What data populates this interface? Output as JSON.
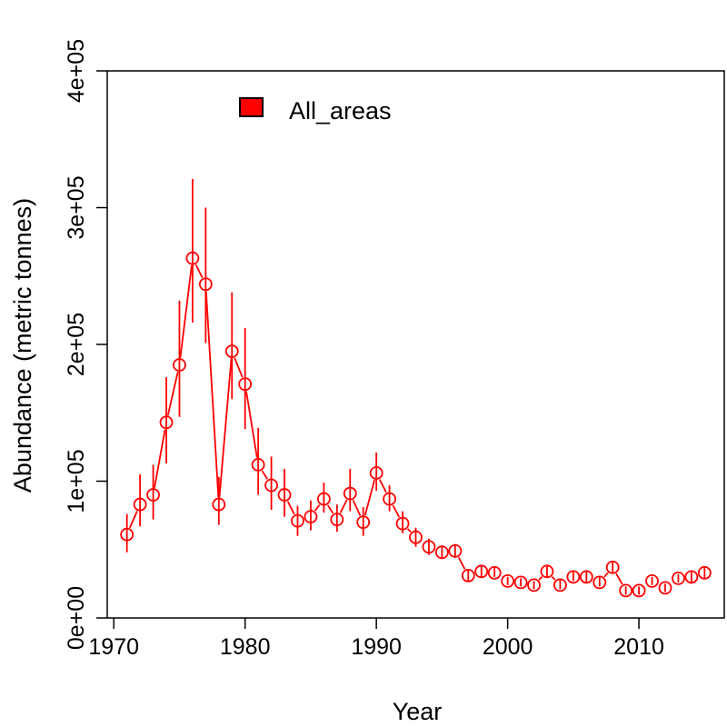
{
  "chart_data": {
    "type": "scatter",
    "xlabel": "Year",
    "ylabel": "Abundance (metric tonnes)",
    "xlim": [
      1969.5,
      2016.5
    ],
    "ylim": [
      0,
      400000
    ],
    "x_ticks": [
      1970,
      1980,
      1990,
      2000,
      2010
    ],
    "x_tick_labels": [
      "1970",
      "1980",
      "1990",
      "2000",
      "2010"
    ],
    "y_ticks": [
      0,
      100000,
      200000,
      300000,
      400000
    ],
    "y_tick_labels": [
      "0e+00",
      "1e+05",
      "2e+05",
      "3e+05",
      "4e+05"
    ],
    "legend": {
      "position": "top-left",
      "label": "All_areas"
    },
    "color": "#ff0000",
    "series": [
      {
        "name": "All_areas",
        "x": [
          1971,
          1972,
          1973,
          1974,
          1975,
          1976,
          1977,
          1978,
          1979,
          1980,
          1981,
          1982,
          1983,
          1984,
          1985,
          1986,
          1987,
          1988,
          1989,
          1990,
          1991,
          1992,
          1993,
          1994,
          1995,
          1996,
          1997,
          1998,
          1999,
          2000,
          2001,
          2002,
          2003,
          2004,
          2005,
          2006,
          2007,
          2008,
          2009,
          2010,
          2011,
          2012,
          2013,
          2014,
          2015
        ],
        "y": [
          61000,
          83000,
          90000,
          143000,
          185000,
          263000,
          244000,
          83000,
          195000,
          171000,
          112000,
          97000,
          90000,
          71000,
          74000,
          87000,
          72000,
          91000,
          70000,
          106000,
          87000,
          69000,
          59000,
          52000,
          48000,
          49000,
          31000,
          34000,
          33000,
          27000,
          26000,
          24000,
          34000,
          24000,
          30000,
          30000,
          26000,
          37000,
          20000,
          20000,
          27000,
          22000,
          29000,
          30000,
          33000
        ],
        "lower": [
          48000,
          67000,
          72000,
          113000,
          147000,
          216000,
          201000,
          68000,
          160000,
          138000,
          90000,
          79000,
          74000,
          60000,
          64000,
          77000,
          63000,
          78000,
          60000,
          93000,
          78000,
          62000,
          52000,
          46000,
          43000,
          44000,
          27000,
          30000,
          30000,
          24000,
          23000,
          21000,
          30000,
          21000,
          27000,
          26000,
          23000,
          33000,
          17000,
          17000,
          24000,
          19000,
          26000,
          26000,
          29000
        ],
        "upper": [
          76000,
          105000,
          112000,
          176000,
          232000,
          321000,
          300000,
          103000,
          238000,
          212000,
          139000,
          118000,
          109000,
          82000,
          86000,
          99000,
          83000,
          109000,
          81000,
          121000,
          97000,
          78000,
          66000,
          58000,
          53000,
          54000,
          35000,
          38000,
          37000,
          30000,
          29000,
          27000,
          38000,
          28000,
          34000,
          34000,
          30000,
          41000,
          23000,
          23000,
          30000,
          25000,
          32000,
          34000,
          37000
        ]
      }
    ]
  }
}
